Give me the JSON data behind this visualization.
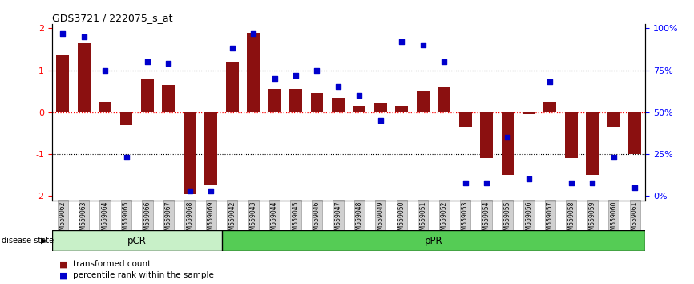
{
  "title": "GDS3721 / 222075_s_at",
  "samples": [
    "GSM559062",
    "GSM559063",
    "GSM559064",
    "GSM559065",
    "GSM559066",
    "GSM559067",
    "GSM559068",
    "GSM559069",
    "GSM559042",
    "GSM559043",
    "GSM559044",
    "GSM559045",
    "GSM559046",
    "GSM559047",
    "GSM559048",
    "GSM559049",
    "GSM559050",
    "GSM559051",
    "GSM559052",
    "GSM559053",
    "GSM559054",
    "GSM559055",
    "GSM559056",
    "GSM559057",
    "GSM559058",
    "GSM559059",
    "GSM559060",
    "GSM559061"
  ],
  "bar_values": [
    1.35,
    1.65,
    0.25,
    -0.3,
    0.8,
    0.65,
    -1.95,
    -1.75,
    1.2,
    1.9,
    0.55,
    0.55,
    0.45,
    0.35,
    0.15,
    0.2,
    0.15,
    0.5,
    0.6,
    -0.35,
    -1.1,
    -1.5,
    -0.05,
    0.25,
    -1.1,
    -1.5,
    -0.35,
    -1.0
  ],
  "scatter_pct": [
    97,
    95,
    75,
    23,
    80,
    79,
    3,
    3,
    88,
    97,
    70,
    72,
    75,
    65,
    60,
    45,
    92,
    90,
    80,
    8,
    8,
    35,
    10,
    68,
    8,
    8,
    23,
    5
  ],
  "pCR_range": [
    0,
    7
  ],
  "pPR_range": [
    8,
    27
  ],
  "pCR_color": "#c8f0c8",
  "pPR_color": "#55cc55",
  "bar_color": "#8B1010",
  "scatter_color": "#0000CC",
  "ylim": [
    -2.1,
    2.1
  ],
  "legend_bar_label": "transformed count",
  "legend_scatter_label": "percentile rank within the sample",
  "disease_state_label": "disease state"
}
